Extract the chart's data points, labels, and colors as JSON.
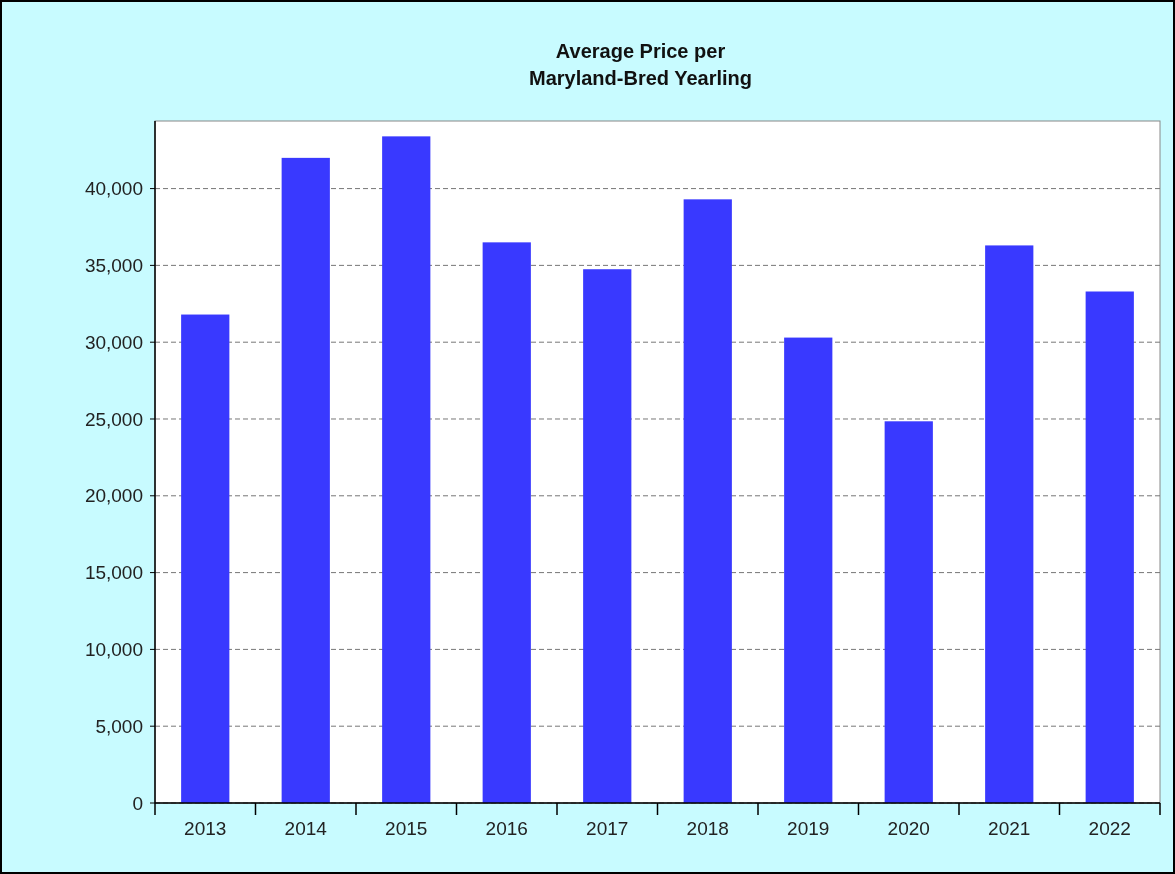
{
  "chart_data": {
    "type": "bar",
    "title": "Average Price per\nMaryland-Bred Yearling",
    "categories": [
      "2013",
      "2014",
      "2015",
      "2016",
      "2017",
      "2018",
      "2019",
      "2020",
      "2021",
      "2022"
    ],
    "values": [
      31800,
      42000,
      43400,
      36500,
      34750,
      39300,
      30300,
      24850,
      36300,
      33300
    ],
    "color": "#3939ff",
    "ylim": [
      0,
      44400
    ],
    "yticks": [
      {
        "value": 0,
        "label": "0"
      },
      {
        "value": 5000,
        "label": "5,000"
      },
      {
        "value": 10000,
        "label": "10,000"
      },
      {
        "value": 15000,
        "label": "15,000"
      },
      {
        "value": 20000,
        "label": "20,000"
      },
      {
        "value": 25000,
        "label": "25,000"
      },
      {
        "value": 30000,
        "label": "30,000"
      },
      {
        "value": 35000,
        "label": "35,000"
      },
      {
        "value": 40000,
        "label": "40,000"
      }
    ],
    "grid": "y"
  }
}
